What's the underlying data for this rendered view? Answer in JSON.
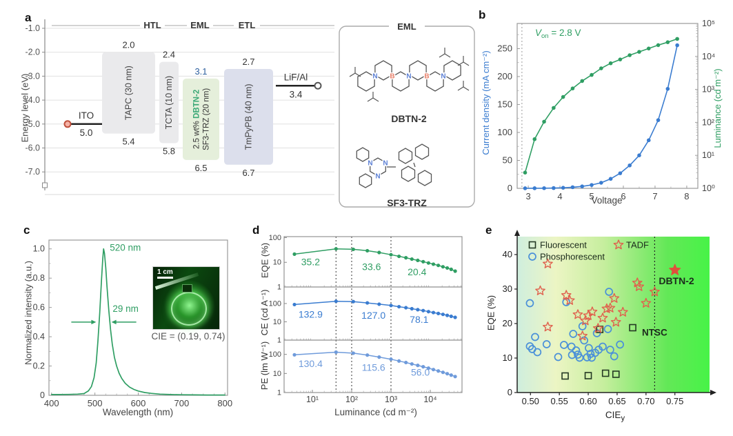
{
  "panels": {
    "a": "a",
    "b": "b",
    "c": "c",
    "d": "d",
    "e": "e"
  },
  "colors": {
    "green": "#2f9e63",
    "blue": "#3a7cd0",
    "light_blue": "#6f9bdb",
    "red": "#e0604d",
    "axis": "#999999"
  },
  "panel_a": {
    "ylabel": "Energy level (eV)",
    "ytick_labels": [
      "-1.0",
      "-2.0",
      "-3.0",
      "-4.0",
      "-5.0",
      "-6.0",
      "-7.0"
    ],
    "headers": [
      "HTL",
      "EML",
      "ETL"
    ],
    "ito": {
      "name": "ITO",
      "value": "5.0",
      "level": "5.0"
    },
    "cathode": {
      "name": "LiF/Al",
      "value": "3.4",
      "level": "3.4"
    },
    "layers": [
      {
        "name": "TAPC (30 nm)",
        "lumo": "2.0",
        "homo": "5.4",
        "fill": "#eaeaec"
      },
      {
        "name": "TCTA (10 nm)",
        "lumo": "2.4",
        "homo": "5.8",
        "fill": "#eaeaec"
      },
      {
        "line1_pre": "2.5 wt% ",
        "line1_name": "DBTN-2",
        "line2": "SF3-TRZ (20 nm)",
        "lumo": "3.1",
        "homo": "6.5",
        "fill": "#e5efdb",
        "lumo_color": "#2d5f9e",
        "name_color": "#3aa876"
      },
      {
        "name": "TmPyPB (40 nm)",
        "lumo": "2.7",
        "homo": "6.7",
        "fill": "#dcdfec"
      }
    ],
    "eml_box": {
      "title": "EML",
      "mol1": "DBTN-2",
      "mol2": "SF3-TRZ",
      "atom_colors": {
        "B": "#e8806a",
        "N": "#5b7fd4"
      }
    }
  },
  "chart_data": [
    {
      "panel": "b",
      "type": "line",
      "xlabel": "Voltage",
      "xlim": [
        2.65,
        8.35
      ],
      "xticks": [
        3,
        4,
        5,
        6,
        7,
        8
      ],
      "ylabel_left": "Current density (mA cm⁻²)",
      "ylim_left": [
        0,
        295
      ],
      "yticks_left": [
        0,
        50,
        100,
        150,
        200,
        250
      ],
      "ylabel_right": "Luminance (cd m⁻²)",
      "ylim_right": [
        1,
        100000
      ],
      "yticks_right": [
        "10⁰",
        "10¹",
        "10²",
        "10³",
        "10⁴",
        "10⁵"
      ],
      "annotation": {
        "v": "V",
        "sub": "on",
        "rest": " = 2.8 V",
        "x": 2.8
      },
      "x": [
        2.9,
        3.2,
        3.5,
        3.8,
        4.1,
        4.4,
        4.7,
        5.0,
        5.3,
        5.6,
        5.9,
        6.2,
        6.5,
        6.8,
        7.1,
        7.4,
        7.7
      ],
      "series": [
        {
          "name": "Current density",
          "axis": "left",
          "color": "#3a7cd0",
          "values": [
            0.1,
            0.2,
            0.3,
            0.5,
            1,
            2,
            3.5,
            6,
            10,
            17,
            27,
            41,
            59,
            86,
            122,
            178,
            256
          ]
        },
        {
          "name": "Luminance",
          "axis": "right",
          "color": "#2f9e63",
          "values": [
            3,
            31,
            105,
            275,
            590,
            1070,
            1800,
            2750,
            4350,
            6200,
            8100,
            10900,
            13800,
            17400,
            22000,
            27000,
            34000
          ]
        }
      ]
    },
    {
      "panel": "c",
      "type": "line",
      "xlabel": "Wavelength (nm)",
      "ylabel": "Normalized intensity (a.u.)",
      "xlim": [
        394,
        806
      ],
      "xticks": [
        400,
        500,
        600,
        700,
        800
      ],
      "ylim": [
        0,
        1.06
      ],
      "yticks": [
        {
          "label": "0",
          "v": 0
        },
        {
          "label": "0.2",
          "v": 0.2
        },
        {
          "label": "0.4",
          "v": 0.4
        },
        {
          "label": "0.6",
          "v": 0.6
        },
        {
          "label": "0.8",
          "v": 0.8
        },
        {
          "label": "1.0",
          "v": 1.0
        }
      ],
      "color": "#2f9e63",
      "peak_label": "520 nm",
      "fwhm_label": "29 nm",
      "fwhm": [
        506,
        535
      ],
      "cie_label": "CIE = (0.19, 0.74)",
      "scalebar": "1 cm",
      "x": [
        400,
        420,
        440,
        460,
        475,
        485,
        492,
        498,
        503,
        507,
        511,
        515,
        518,
        520,
        522,
        525,
        528,
        532,
        536,
        540,
        545,
        550,
        556,
        562,
        570,
        580,
        590,
        600,
        615,
        630,
        650,
        675,
        700,
        730,
        760,
        800
      ],
      "values": [
        0.005,
        0.005,
        0.006,
        0.008,
        0.012,
        0.03,
        0.06,
        0.12,
        0.22,
        0.37,
        0.56,
        0.78,
        0.93,
        1.0,
        0.97,
        0.87,
        0.74,
        0.58,
        0.45,
        0.35,
        0.26,
        0.2,
        0.15,
        0.115,
        0.082,
        0.056,
        0.04,
        0.029,
        0.019,
        0.013,
        0.008,
        0.005,
        0.004,
        0.003,
        0.002,
        0.002
      ]
    },
    {
      "panel": "d",
      "type": "line",
      "xlabel": "Luminance (cd m⁻²)",
      "xlog": true,
      "xlim": [
        1.9,
        63000
      ],
      "xticks": [
        "10¹",
        "10²",
        "10³",
        "10⁴"
      ],
      "vlines": [
        40,
        100,
        1000
      ],
      "x": [
        3.5,
        40,
        110,
        250,
        500,
        1000,
        1600,
        2400,
        3400,
        4800,
        6600,
        9000,
        12000,
        16000,
        21000,
        27000,
        34000,
        43000
      ],
      "subplots": [
        {
          "ylabel": "EQE (%)",
          "color": "#2f9e63",
          "ylim": [
            1,
            110
          ],
          "yticks": [
            1,
            10,
            100
          ],
          "values": [
            21.5,
            35.2,
            33.6,
            29.5,
            25,
            20.4,
            17.5,
            15.3,
            13.5,
            12,
            10.6,
            9.4,
            8.4,
            7.5,
            6.6,
            5.9,
            5.2,
            4.4
          ],
          "annotations": [
            {
              "text": "35.2",
              "x": 9,
              "y": 7.5
            },
            {
              "text": "33.6",
              "x": 320,
              "y": 4.8
            },
            {
              "text": "20.4",
              "x": 4600,
              "y": 3.0
            }
          ]
        },
        {
          "ylabel": "CE (cd A⁻¹)",
          "color": "#3a7cd0",
          "ylim": [
            1,
            800
          ],
          "yticks": [
            1,
            10,
            100
          ],
          "values": [
            88,
            132.9,
            127,
            108,
            92,
            78.1,
            67,
            59,
            52,
            46,
            41,
            36,
            32,
            28.5,
            25.5,
            22.5,
            20,
            17.5
          ],
          "annotations": [
            {
              "text": "132.9",
              "x": 9,
              "y": 17
            },
            {
              "text": "127.0",
              "x": 360,
              "y": 14.5
            },
            {
              "text": "78.1",
              "x": 5200,
              "y": 8.7
            }
          ]
        },
        {
          "ylabel": "PE (lm W⁻¹)",
          "color": "#6f9bdb",
          "ylim": [
            1,
            560
          ],
          "yticks": [
            1,
            10,
            100
          ],
          "values": [
            95,
            130.4,
            115.6,
            92,
            72,
            56,
            45,
            37.5,
            31.5,
            26.5,
            22.5,
            19,
            16,
            13.5,
            11.5,
            9.7,
            8.2,
            6.9
          ],
          "annotations": [
            {
              "text": "130.4",
              "x": 9,
              "y": 22
            },
            {
              "text": "115.6",
              "x": 360,
              "y": 13.5
            },
            {
              "text": "56.0",
              "x": 5600,
              "y": 7.6
            }
          ]
        }
      ]
    },
    {
      "panel": "e",
      "type": "scatter",
      "xlabel_main": "CIE",
      "xlabel_sub": "y",
      "ylabel": "EQE (%)",
      "xlim": [
        0.477,
        0.81
      ],
      "xticks": [
        {
          "label": "0.50",
          "v": 0.5
        },
        {
          "label": "0.55",
          "v": 0.55
        },
        {
          "label": "0.60",
          "v": 0.6
        },
        {
          "label": "0.65",
          "v": 0.65
        },
        {
          "label": "0.70",
          "v": 0.7
        },
        {
          "label": "0.75",
          "v": 0.75
        }
      ],
      "ylim": [
        0,
        45.2
      ],
      "yticks": [
        0,
        10,
        20,
        30,
        40
      ],
      "gradient": [
        "#cfeede",
        "#ecf5c4",
        "#c6ee9e",
        "#63e857",
        "#47f347"
      ],
      "ntsc": {
        "x": 0.715,
        "label": "NTSC",
        "label_y": 16.5
      },
      "highlight": {
        "label": "DBTN-2",
        "x": 0.75,
        "y": 35.5,
        "color": "#e0503c"
      },
      "series": [
        {
          "name": "Phosphorescent",
          "marker": "circle",
          "color": "#4a90d9",
          "points": [
            [
              0.499,
              25.9
            ],
            [
              0.499,
              13.4
            ],
            [
              0.503,
              12.6
            ],
            [
              0.508,
              16.1
            ],
            [
              0.512,
              11.7
            ],
            [
              0.528,
              14.0
            ],
            [
              0.548,
              10.3
            ],
            [
              0.558,
              13.8
            ],
            [
              0.562,
              26.2
            ],
            [
              0.571,
              13.3
            ],
            [
              0.572,
              10.9
            ],
            [
              0.574,
              17.0
            ],
            [
              0.579,
              12.2
            ],
            [
              0.582,
              11.0
            ],
            [
              0.585,
              10.1
            ],
            [
              0.59,
              19.2
            ],
            [
              0.593,
              15.1
            ],
            [
              0.598,
              10.2
            ],
            [
              0.601,
              12.9
            ],
            [
              0.604,
              11.2
            ],
            [
              0.606,
              10.1
            ],
            [
              0.612,
              11.5
            ],
            [
              0.615,
              17.2
            ],
            [
              0.618,
              12.4
            ],
            [
              0.625,
              13.3
            ],
            [
              0.634,
              18.4
            ],
            [
              0.636,
              29.2
            ],
            [
              0.638,
              12.4
            ],
            [
              0.645,
              10.5
            ],
            [
              0.655,
              13.9
            ]
          ]
        },
        {
          "name": "Fluorescent",
          "marker": "square",
          "color": "#233823",
          "points": [
            [
              0.56,
              4.8
            ],
            [
              0.6,
              4.9
            ],
            [
              0.62,
              18.3
            ],
            [
              0.63,
              5.6
            ],
            [
              0.648,
              5.3
            ],
            [
              0.677,
              18.8
            ]
          ]
        },
        {
          "name": "TADF",
          "marker": "star",
          "color": "#e0604d",
          "points": [
            [
              0.517,
              29.5
            ],
            [
              0.53,
              37.3
            ],
            [
              0.53,
              19.0
            ],
            [
              0.562,
              28.2
            ],
            [
              0.568,
              26.7
            ],
            [
              0.582,
              22.6
            ],
            [
              0.59,
              16.4
            ],
            [
              0.595,
              20.8
            ],
            [
              0.6,
              22.3
            ],
            [
              0.607,
              23.4
            ],
            [
              0.617,
              18.6
            ],
            [
              0.625,
              21.6
            ],
            [
              0.632,
              24.3
            ],
            [
              0.638,
              24.5
            ],
            [
              0.645,
              27.3
            ],
            [
              0.648,
              20.4
            ],
            [
              0.66,
              23.3
            ],
            [
              0.685,
              31.8
            ],
            [
              0.688,
              30.7
            ],
            [
              0.7,
              25.9
            ],
            [
              0.715,
              29.2
            ]
          ]
        }
      ]
    }
  ]
}
